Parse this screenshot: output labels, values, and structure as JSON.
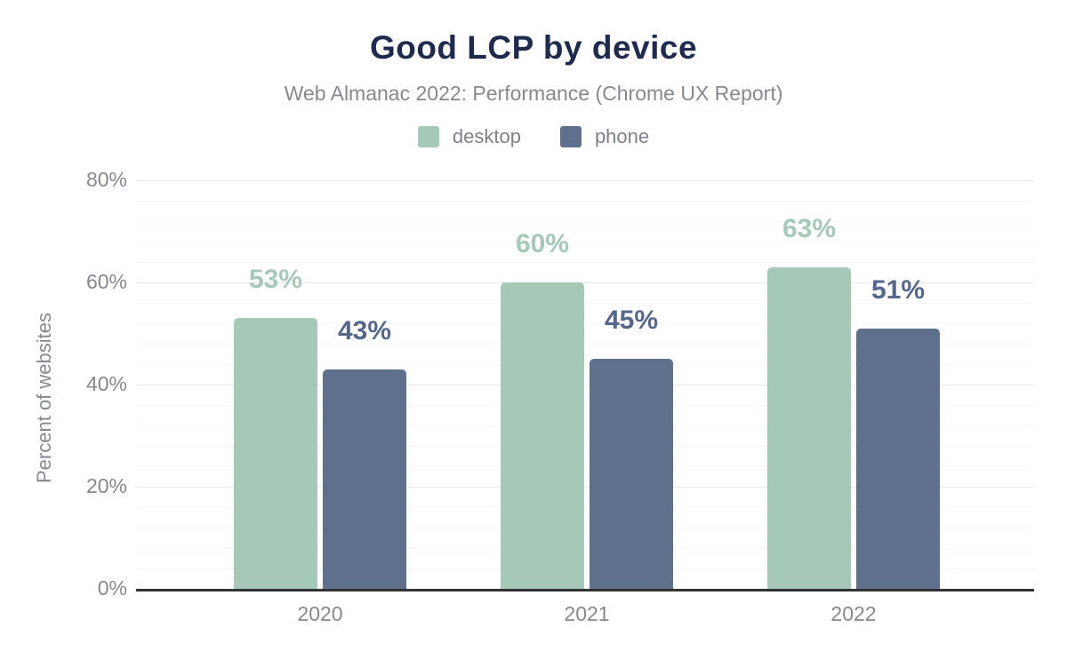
{
  "chart": {
    "title": "Good LCP by device",
    "subtitle": "Web Almanac 2022: Performance (Chrome UX Report)"
  },
  "legend": {
    "items": [
      {
        "label": "desktop",
        "color": "#a6c9b7"
      },
      {
        "label": "phone",
        "color": "#5f708d"
      }
    ]
  },
  "chart_data": {
    "type": "bar",
    "title": "Good LCP by device",
    "subtitle": "Web Almanac 2022: Performance (Chrome UX Report)",
    "categories": [
      "2020",
      "2021",
      "2022"
    ],
    "series": [
      {
        "name": "desktop",
        "color": "#a6c9b7",
        "label_color": "#a6c9b7",
        "values": [
          53,
          60,
          63
        ],
        "data_labels": [
          "53%",
          "60%",
          "63%"
        ]
      },
      {
        "name": "phone",
        "color": "#5f708d",
        "label_color": "#55678a",
        "values": [
          43,
          45,
          51
        ],
        "data_labels": [
          "43%",
          "45%",
          "51%"
        ]
      }
    ],
    "xlabel": "",
    "ylabel": "Percent of websites",
    "ylim": [
      0,
      80
    ],
    "y_tick_step": 20,
    "y_minor_step": 4,
    "y_tick_format": "{v}%",
    "y_tick_labels": [
      "0%",
      "20%",
      "40%",
      "60%",
      "80%"
    ],
    "grid": true,
    "legend_position": "top",
    "colors": {
      "title": "#1e2b4e",
      "subtitle": "#84898f",
      "axis_text": "#84898f",
      "baseline": "#323232",
      "grid_major": "#e7e7e7",
      "grid_minor": "#f5f5f6"
    }
  }
}
